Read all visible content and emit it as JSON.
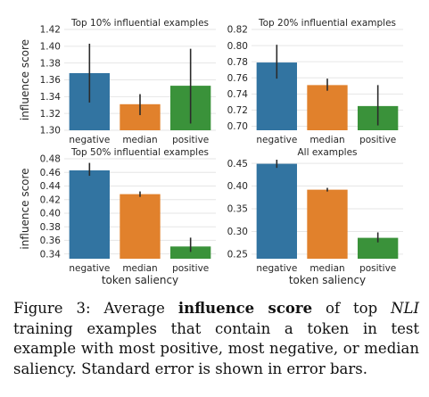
{
  "figure": {
    "ylabel_left": "influence score",
    "xlabel_bottom": "token saliency",
    "colors": {
      "negative": "#3274a1",
      "median": "#e1812c",
      "positive": "#3a923a",
      "error": "#2b2b2b",
      "grid": "#e6e6e6"
    }
  },
  "chart_data": [
    {
      "type": "bar",
      "title": "Top 10% influential examples",
      "categories": [
        "negative",
        "median",
        "positive"
      ],
      "values": [
        1.368,
        1.331,
        1.353
      ],
      "errors": [
        [
          1.333,
          1.403
        ],
        [
          1.318,
          1.343
        ],
        [
          1.308,
          1.397
        ]
      ],
      "ylim": [
        1.3,
        1.42
      ],
      "yticks": [
        "1.30",
        "1.32",
        "1.34",
        "1.36",
        "1.38",
        "1.40",
        "1.42"
      ],
      "ylabel": "influence score",
      "xlabel": "",
      "grid": true
    },
    {
      "type": "bar",
      "title": "Top 20% influential examples",
      "categories": [
        "negative",
        "median",
        "positive"
      ],
      "values": [
        0.779,
        0.751,
        0.725
      ],
      "errors": [
        [
          0.759,
          0.801
        ],
        [
          0.744,
          0.759
        ],
        [
          0.701,
          0.751
        ]
      ],
      "ylim": [
        0.695,
        0.82
      ],
      "yticks": [
        "0.70",
        "0.72",
        "0.74",
        "0.76",
        "0.78",
        "0.80",
        "0.82"
      ],
      "ylabel": "",
      "xlabel": "",
      "grid": true
    },
    {
      "type": "bar",
      "title": "Top 50% influential examples",
      "categories": [
        "negative",
        "median",
        "positive"
      ],
      "values": [
        0.463,
        0.428,
        0.351
      ],
      "errors": [
        [
          0.455,
          0.474
        ],
        [
          0.424,
          0.432
        ],
        [
          0.343,
          0.364
        ]
      ],
      "ylim": [
        0.333,
        0.48
      ],
      "yticks": [
        "0.34",
        "0.36",
        "0.38",
        "0.40",
        "0.42",
        "0.44",
        "0.46",
        "0.48"
      ],
      "ylabel": "influence score",
      "xlabel": "token saliency",
      "grid": true
    },
    {
      "type": "bar",
      "title": "All examples",
      "categories": [
        "negative",
        "median",
        "positive"
      ],
      "values": [
        0.449,
        0.392,
        0.286
      ],
      "errors": [
        [
          0.44,
          0.458
        ],
        [
          0.388,
          0.396
        ],
        [
          0.276,
          0.298
        ]
      ],
      "ylim": [
        0.24,
        0.46
      ],
      "yticks": [
        "0.25",
        "0.30",
        "0.35",
        "0.40",
        "0.45"
      ],
      "ylabel": "",
      "xlabel": "token saliency",
      "grid": true
    }
  ],
  "caption": {
    "prefix": "Figure 3: Average ",
    "bold": "influence score",
    "mid": " of top ",
    "italic": "NLI",
    "suffix": " training examples that contain a token in test example with most positive, most negative, or median saliency. Standard error is shown in error bars."
  }
}
